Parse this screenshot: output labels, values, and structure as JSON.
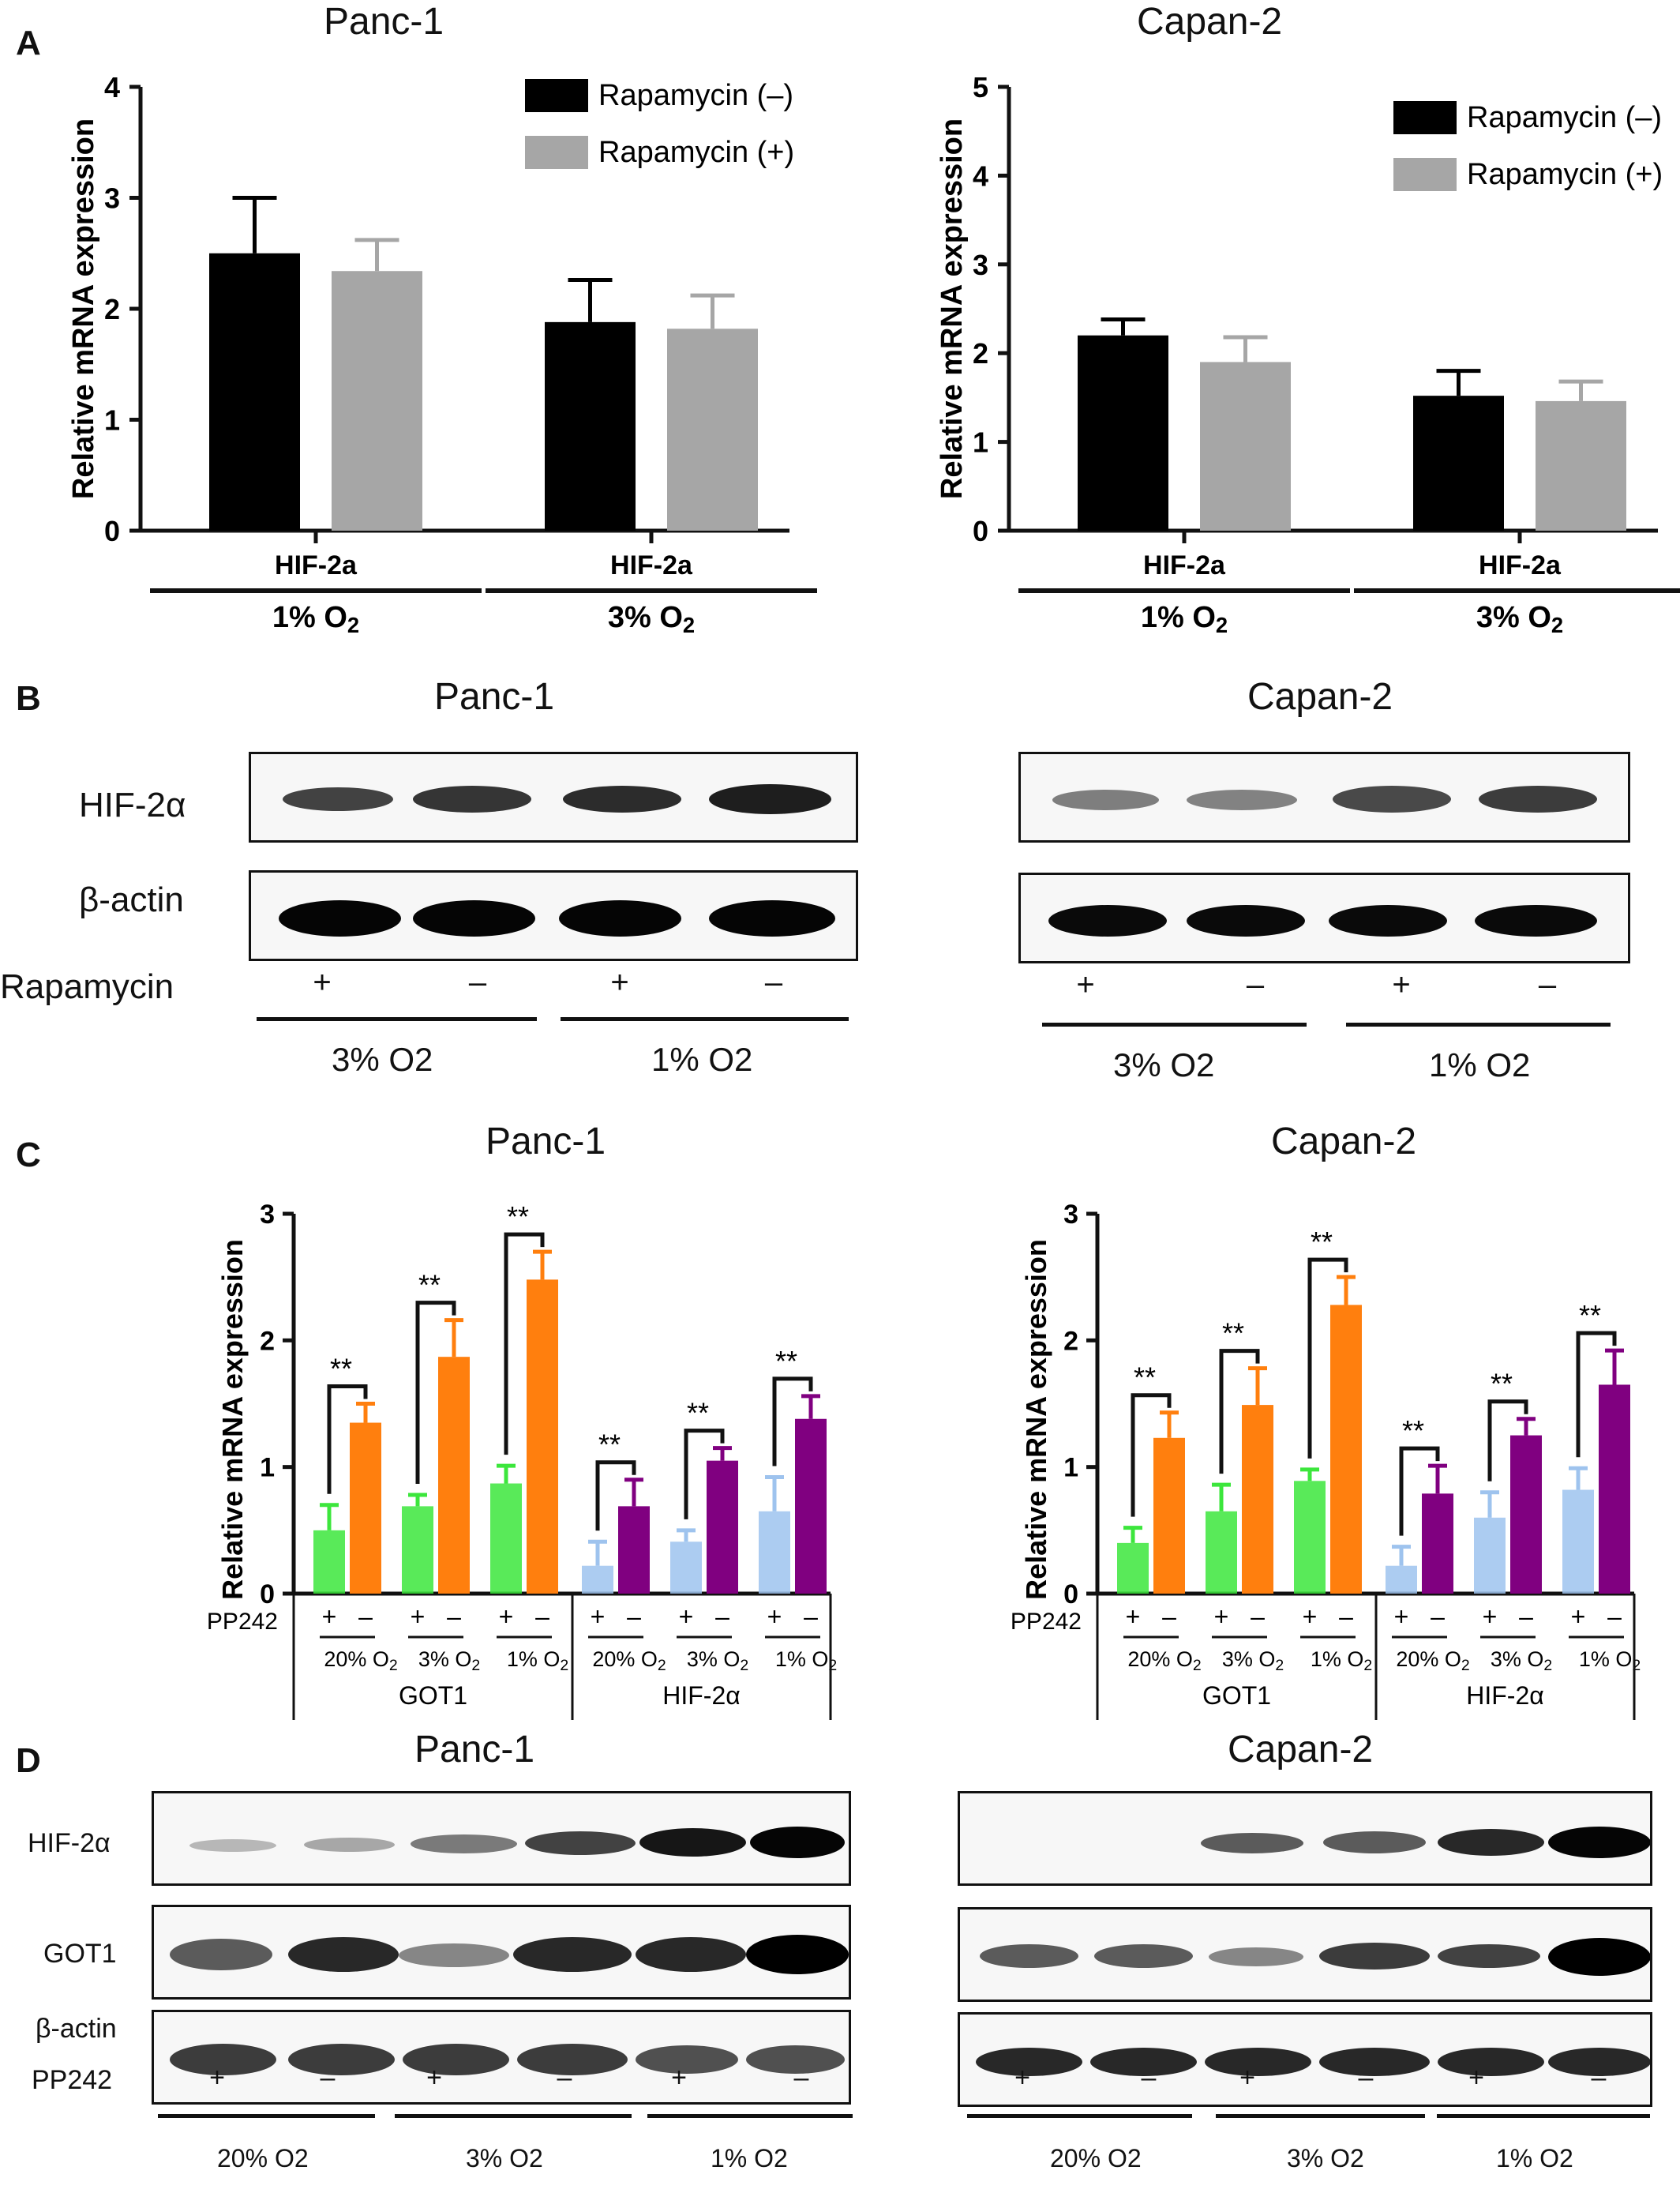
{
  "panels": {
    "A": {
      "letter": "A",
      "legend": [
        "Rapamycin (–)",
        "Rapamycin (+)"
      ],
      "ylabel": "Relative mRNA expression"
    },
    "B": {
      "letter": "B",
      "rows": [
        "HIF-2α",
        "β-actin"
      ],
      "treatment_label": "Rapamycin",
      "signs": [
        "+",
        "–",
        "+",
        "–"
      ],
      "conditions": [
        "3% O2",
        "1% O2"
      ]
    },
    "C": {
      "letter": "C",
      "ylabel": "Relative mRNA expression",
      "treatment_label": "PP242",
      "sign_plus": "+",
      "sign_minus": "–",
      "conditions": [
        "20% O2",
        "3% O2",
        "1% O2"
      ],
      "genes": [
        "GOT1",
        "HIF-2α"
      ]
    },
    "D": {
      "letter": "D",
      "rows": [
        "HIF-2α",
        "GOT1",
        "β-actin"
      ],
      "treatment_label": "PP242",
      "signs": [
        "+",
        "–",
        "+",
        "–",
        "+",
        "–"
      ],
      "conditions": [
        "20% O2",
        "3% O2",
        "1% O2"
      ]
    }
  },
  "cell_lines": [
    "Panc-1",
    "Capan-2"
  ],
  "colors": {
    "black": "#000000",
    "gray": "#a6a6a6",
    "green": "#3ce63c",
    "orange": "#ff7f0e",
    "lightblue": "#9ec3ee",
    "purple": "#800080"
  },
  "chart_data": [
    {
      "id": "A-Panc-1",
      "type": "bar",
      "title": "Panc-1",
      "ylabel": "Relative mRNA expression",
      "ylim": [
        0,
        4
      ],
      "yticks": [
        0,
        1,
        2,
        3,
        4
      ],
      "groups": [
        {
          "gene": "HIF-2a",
          "condition": "1% O2"
        },
        {
          "gene": "HIF-2a",
          "condition": "3% O2"
        }
      ],
      "series": [
        {
          "name": "Rapamycin (–)",
          "color": "#000000",
          "values": [
            2.5,
            1.88
          ],
          "errors": [
            0.5,
            0.38
          ]
        },
        {
          "name": "Rapamycin (+)",
          "color": "#a6a6a6",
          "values": [
            2.34,
            1.82
          ],
          "errors": [
            0.28,
            0.3
          ]
        }
      ]
    },
    {
      "id": "A-Capan-2",
      "type": "bar",
      "title": "Capan-2",
      "ylabel": "Relative mRNA expression",
      "ylim": [
        0,
        5
      ],
      "yticks": [
        0,
        1,
        2,
        3,
        4,
        5
      ],
      "groups": [
        {
          "gene": "HIF-2a",
          "condition": "1% O2"
        },
        {
          "gene": "HIF-2a",
          "condition": "3% O2"
        }
      ],
      "series": [
        {
          "name": "Rapamycin (–)",
          "color": "#000000",
          "values": [
            2.2,
            1.52
          ],
          "errors": [
            0.18,
            0.28
          ]
        },
        {
          "name": "Rapamycin (+)",
          "color": "#a6a6a6",
          "values": [
            1.9,
            1.46
          ],
          "errors": [
            0.28,
            0.22
          ]
        }
      ]
    },
    {
      "id": "C-Panc-1",
      "type": "bar",
      "title": "Panc-1",
      "ylabel": "Relative mRNA expression",
      "ylim": [
        0,
        3
      ],
      "yticks": [
        0,
        1,
        2,
        3
      ],
      "significance": "**",
      "pairs": [
        {
          "gene": "GOT1",
          "condition": "20% O2",
          "plus": 0.5,
          "plus_err": 0.2,
          "minus": 1.35,
          "minus_err": 0.15
        },
        {
          "gene": "GOT1",
          "condition": "3% O2",
          "plus": 0.69,
          "plus_err": 0.09,
          "minus": 1.87,
          "minus_err": 0.29
        },
        {
          "gene": "GOT1",
          "condition": "1% O2",
          "plus": 0.87,
          "plus_err": 0.14,
          "minus": 2.48,
          "minus_err": 0.22
        },
        {
          "gene": "HIF-2α",
          "condition": "20% O2",
          "plus": 0.22,
          "plus_err": 0.19,
          "minus": 0.69,
          "minus_err": 0.21
        },
        {
          "gene": "HIF-2α",
          "condition": "3% O2",
          "plus": 0.41,
          "plus_err": 0.09,
          "minus": 1.05,
          "minus_err": 0.1
        },
        {
          "gene": "HIF-2α",
          "condition": "1% O2",
          "plus": 0.65,
          "plus_err": 0.27,
          "minus": 1.38,
          "minus_err": 0.18
        }
      ]
    },
    {
      "id": "C-Capan-2",
      "type": "bar",
      "title": "Capan-2",
      "ylabel": "Relative mRNA expression",
      "ylim": [
        0,
        3
      ],
      "yticks": [
        0,
        1,
        2,
        3
      ],
      "significance": "**",
      "pairs": [
        {
          "gene": "GOT1",
          "condition": "20% O2",
          "plus": 0.4,
          "plus_err": 0.12,
          "minus": 1.23,
          "minus_err": 0.2
        },
        {
          "gene": "GOT1",
          "condition": "3% O2",
          "plus": 0.65,
          "plus_err": 0.21,
          "minus": 1.49,
          "minus_err": 0.29
        },
        {
          "gene": "GOT1",
          "condition": "1% O2",
          "plus": 0.89,
          "plus_err": 0.09,
          "minus": 2.28,
          "minus_err": 0.22
        },
        {
          "gene": "HIF-2α",
          "condition": "20% O2",
          "plus": 0.22,
          "plus_err": 0.15,
          "minus": 0.79,
          "minus_err": 0.22
        },
        {
          "gene": "HIF-2α",
          "condition": "3% O2",
          "plus": 0.6,
          "plus_err": 0.2,
          "minus": 1.25,
          "minus_err": 0.13
        },
        {
          "gene": "HIF-2α",
          "condition": "1% O2",
          "plus": 0.82,
          "plus_err": 0.17,
          "minus": 1.65,
          "minus_err": 0.27
        }
      ]
    }
  ]
}
